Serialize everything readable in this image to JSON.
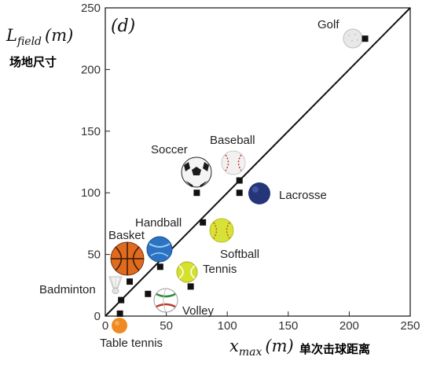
{
  "chart_data": {
    "type": "scatter",
    "panel_label": "(d)",
    "xlabel": {
      "main": "x",
      "sub": "max",
      "unit": "(m)"
    },
    "ylabel": {
      "main": "L",
      "sub": "field",
      "unit": "(m)"
    },
    "xlabel_cn": "单次击球距离",
    "ylabel_cn": "场地尺寸",
    "xlim": [
      0,
      250
    ],
    "ylim": [
      0,
      250
    ],
    "xticks": [
      "0",
      "50",
      "100",
      "150",
      "200",
      "250"
    ],
    "yticks": [
      "0",
      "50",
      "100",
      "150",
      "200",
      "250"
    ],
    "reference_line": {
      "slope": 1,
      "intercept": 0
    },
    "grid": false,
    "marker": "square",
    "colors": {
      "marker": "#111111",
      "golf": "#e8e8e8",
      "soccer": "#222222",
      "baseball": "#efefef",
      "lacrosse": "#24357a",
      "handball": "#f2e56a",
      "softball": "#d6e23a",
      "basket": "#e06a1e",
      "volley_ball": "#2c73c4",
      "tennis": "#d6e02e",
      "badminton": "#f0f0f0",
      "volley": "#ffffff",
      "table_tennis": "#ef8a22"
    },
    "points": [
      {
        "name": "Golf",
        "x": 213,
        "y": 225
      },
      {
        "name": "Soccer",
        "x": 75,
        "y": 100
      },
      {
        "name": "Baseball",
        "x": 110,
        "y": 110
      },
      {
        "name": "Lacrosse",
        "x": 110,
        "y": 100
      },
      {
        "name": "Handball",
        "x": 80,
        "y": 76
      },
      {
        "name": "Softball",
        "x": 70,
        "y": 24
      },
      {
        "name": "Basket",
        "x": 20,
        "y": 28
      },
      {
        "name": "Tennis",
        "x": 45,
        "y": 40
      },
      {
        "name": "Badminton",
        "x": 13,
        "y": 13
      },
      {
        "name": "Volley",
        "x": 35,
        "y": 18
      },
      {
        "name": "Table tennis",
        "x": 12,
        "y": 2
      }
    ]
  }
}
